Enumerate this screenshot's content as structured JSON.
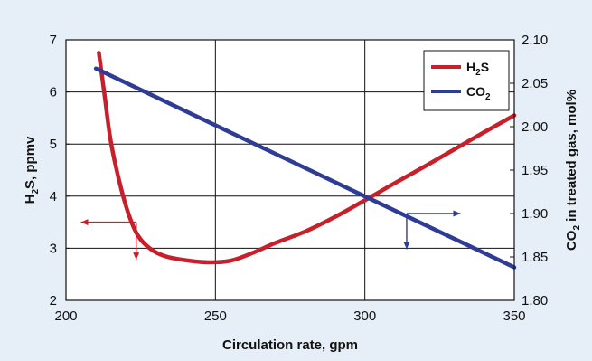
{
  "chart_data": {
    "type": "line",
    "xlabel": "Circulation rate, gpm",
    "ylabel_left": "H2S, ppmv",
    "ylabel_right": "CO2 in treated gas, mol%",
    "xlim": [
      200,
      350
    ],
    "ylim_left": [
      2,
      7
    ],
    "ylim_right": [
      1.8,
      2.1
    ],
    "grid": true,
    "legend_position": "top-right",
    "x_ticks": [
      "200",
      "250",
      "300",
      "350"
    ],
    "y_left_ticks": [
      "2",
      "3",
      "4",
      "5",
      "6",
      "7"
    ],
    "y_right_ticks": [
      "1.80",
      "1.85",
      "1.90",
      "1.95",
      "2.00",
      "2.05",
      "2.10"
    ],
    "series": [
      {
        "name": "H2S",
        "axis": "left",
        "color": "#c8202a",
        "x": [
          211,
          213,
          215,
          218,
          221,
          224,
          228,
          233,
          240,
          248,
          255,
          262,
          270,
          280,
          290,
          300,
          310,
          320,
          330,
          340,
          350
        ],
        "y": [
          6.75,
          5.9,
          5.05,
          4.25,
          3.65,
          3.25,
          3.0,
          2.85,
          2.77,
          2.73,
          2.76,
          2.9,
          3.1,
          3.32,
          3.6,
          3.92,
          4.25,
          4.57,
          4.9,
          5.23,
          5.55
        ]
      },
      {
        "name": "CO2",
        "axis": "right",
        "color": "#2e3c96",
        "x": [
          210,
          350
        ],
        "y": [
          2.067,
          1.838
        ]
      }
    ],
    "legend": {
      "h2s_main": "H",
      "h2s_sub": "2",
      "h2s_tail": "S",
      "co2_main": "CO",
      "co2_sub": "2"
    },
    "ylabel_left_parts": {
      "a": "H",
      "sub": "2",
      "b": "S, ppmv"
    },
    "ylabel_right_parts": {
      "a": "CO",
      "sub": "2",
      "b": " in treated gas, mol%"
    }
  }
}
